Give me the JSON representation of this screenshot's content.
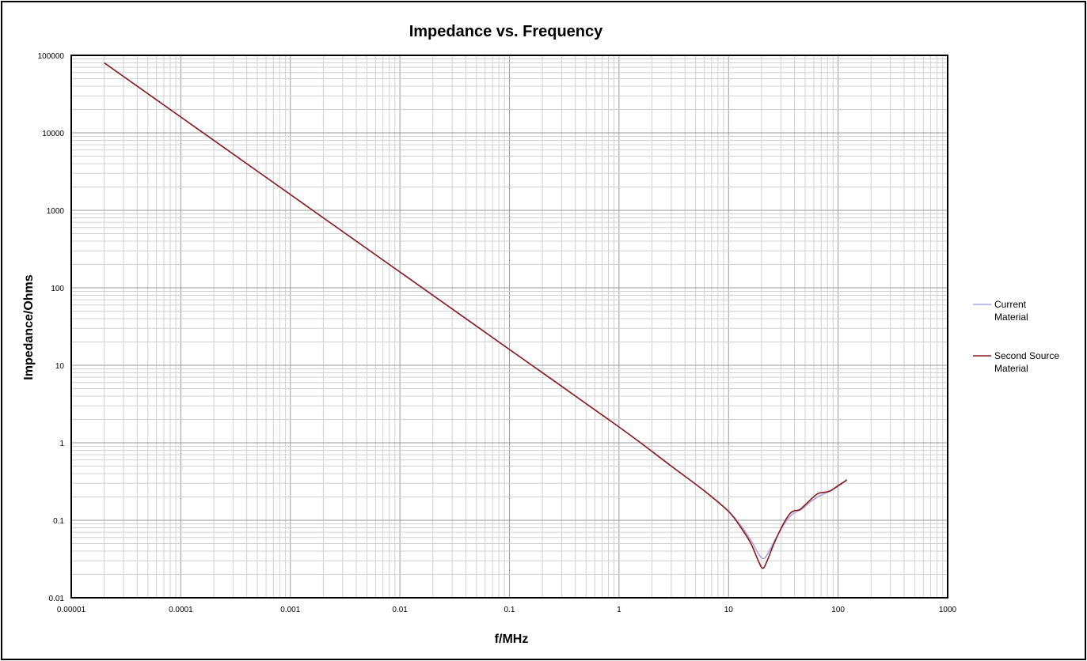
{
  "chart_data": {
    "type": "line",
    "title": "Impedance vs. Frequency",
    "xlabel": "f/MHz",
    "ylabel": "Impedance/Ohms",
    "x_scale": "log",
    "y_scale": "log",
    "xlim": [
      1e-05,
      1000
    ],
    "ylim": [
      0.01,
      100000
    ],
    "x_ticks": [
      "0.00001",
      "0.0001",
      "0.001",
      "0.01",
      "0.1",
      "1",
      "10",
      "100",
      "1000"
    ],
    "y_ticks": [
      "0.01",
      "0.1",
      "1",
      "10",
      "100",
      "1000",
      "10000",
      "100000"
    ],
    "grid": true,
    "legend_position": "right",
    "series": [
      {
        "name": "Current Material",
        "color": "#a9a3e6",
        "points": [
          [
            2e-05,
            80000
          ],
          [
            0.0001,
            16000
          ],
          [
            0.001,
            1600
          ],
          [
            0.01,
            160
          ],
          [
            0.1,
            16
          ],
          [
            1,
            1.6
          ],
          [
            3,
            0.5
          ],
          [
            6,
            0.24
          ],
          [
            10,
            0.13
          ],
          [
            13,
            0.085
          ],
          [
            16,
            0.055
          ],
          [
            19,
            0.036
          ],
          [
            21,
            0.032
          ],
          [
            23,
            0.038
          ],
          [
            27,
            0.058
          ],
          [
            32,
            0.088
          ],
          [
            37,
            0.115
          ],
          [
            42,
            0.13
          ],
          [
            47,
            0.14
          ],
          [
            55,
            0.17
          ],
          [
            65,
            0.2
          ],
          [
            75,
            0.22
          ],
          [
            90,
            0.25
          ],
          [
            110,
            0.3
          ],
          [
            120,
            0.34
          ]
        ]
      },
      {
        "name": "Second Source Material",
        "color": "#8b1a1a",
        "points": [
          [
            2e-05,
            80000
          ],
          [
            0.0001,
            16000
          ],
          [
            0.001,
            1600
          ],
          [
            0.01,
            160
          ],
          [
            0.1,
            16
          ],
          [
            1,
            1.6
          ],
          [
            3,
            0.5
          ],
          [
            6,
            0.24
          ],
          [
            10,
            0.13
          ],
          [
            13,
            0.08
          ],
          [
            16,
            0.05
          ],
          [
            18.5,
            0.031
          ],
          [
            20.5,
            0.024
          ],
          [
            22.5,
            0.03
          ],
          [
            26,
            0.05
          ],
          [
            31,
            0.085
          ],
          [
            36,
            0.12
          ],
          [
            40,
            0.133
          ],
          [
            45,
            0.138
          ],
          [
            55,
            0.18
          ],
          [
            65,
            0.22
          ],
          [
            75,
            0.23
          ],
          [
            85,
            0.24
          ],
          [
            100,
            0.28
          ],
          [
            120,
            0.33
          ]
        ]
      }
    ]
  }
}
